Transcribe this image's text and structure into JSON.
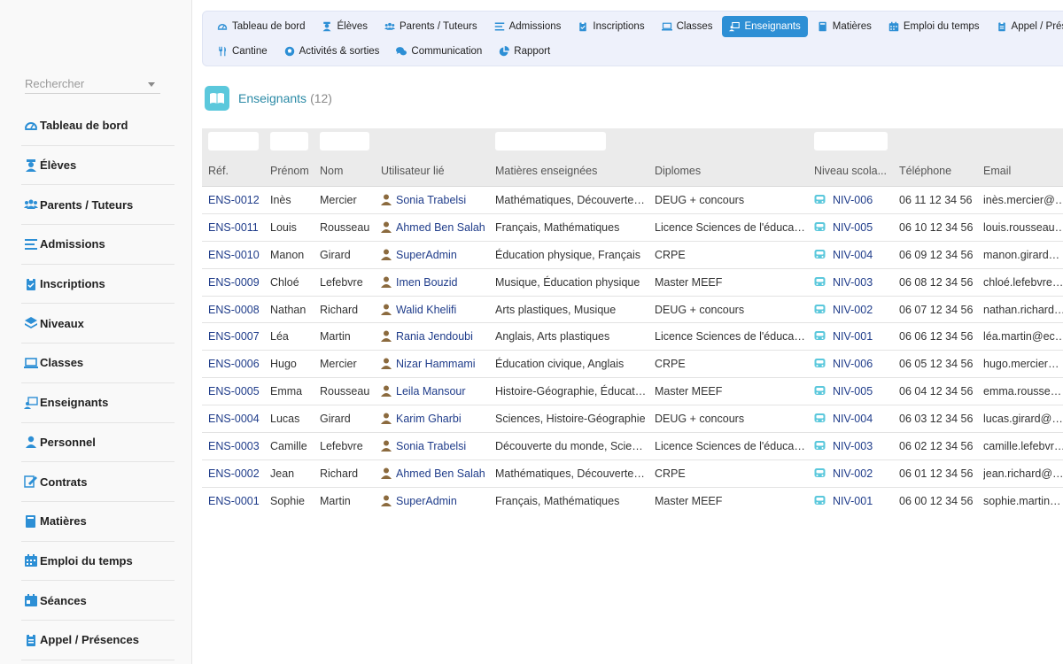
{
  "nav": {
    "row1": [
      {
        "label": "Tableau de bord",
        "icon": "dashboard-icon",
        "active": false
      },
      {
        "label": "Élèves",
        "icon": "student-icon",
        "active": false
      },
      {
        "label": "Parents / Tuteurs",
        "icon": "users-icon",
        "active": false
      },
      {
        "label": "Admissions",
        "icon": "list-icon",
        "active": false
      },
      {
        "label": "Inscriptions",
        "icon": "clipboard-icon",
        "active": false
      },
      {
        "label": "Classes",
        "icon": "laptop-icon",
        "active": false
      },
      {
        "label": "Enseignants",
        "icon": "teacher-icon",
        "active": true
      },
      {
        "label": "Matières",
        "icon": "book-icon",
        "active": false
      },
      {
        "label": "Emploi du temps",
        "icon": "calendar-icon",
        "active": false
      },
      {
        "label": "Appel / Présences",
        "icon": "clipboard-check-icon",
        "active": false
      }
    ],
    "row2": [
      {
        "label": "Cantine",
        "icon": "utensils-icon",
        "active": false
      },
      {
        "label": "Activités & sorties",
        "icon": "ball-icon",
        "active": false
      },
      {
        "label": "Communication",
        "icon": "comments-icon",
        "active": false
      },
      {
        "label": "Rapport",
        "icon": "pie-chart-icon",
        "active": false
      }
    ]
  },
  "sidebar": {
    "search_placeholder": "Rechercher",
    "items": [
      {
        "label": "Tableau de bord",
        "icon": "dashboard-icon"
      },
      {
        "label": "Élèves",
        "icon": "student-icon"
      },
      {
        "label": "Parents / Tuteurs",
        "icon": "users-icon"
      },
      {
        "label": "Admissions",
        "icon": "list-icon"
      },
      {
        "label": "Inscriptions",
        "icon": "clipboard-icon"
      },
      {
        "label": "Niveaux",
        "icon": "layers-icon"
      },
      {
        "label": "Classes",
        "icon": "laptop-icon"
      },
      {
        "label": "Enseignants",
        "icon": "teacher-icon"
      },
      {
        "label": "Personnel",
        "icon": "user-icon"
      },
      {
        "label": "Contrats",
        "icon": "contract-icon"
      },
      {
        "label": "Matières",
        "icon": "book-icon"
      },
      {
        "label": "Emploi du temps",
        "icon": "calendar-icon"
      },
      {
        "label": "Séances",
        "icon": "calendar-day-icon"
      },
      {
        "label": "Appel / Présences",
        "icon": "clipboard-check-icon"
      }
    ]
  },
  "page": {
    "title": "Enseignants",
    "count": "(12)",
    "icon": "open-book-icon"
  },
  "table": {
    "columns": [
      "Réf.",
      "Prénom",
      "Nom",
      "Utilisateur lié",
      "Matières enseignées",
      "Diplomes",
      "Niveau scola...",
      "Téléphone",
      "Email"
    ],
    "rows": [
      [
        "ENS-0012",
        "Inès",
        "Mercier",
        "Sonia Trabelsi",
        "Mathématiques, Découverte du monde",
        "DEUG + concours",
        "NIV-006",
        "06 11 12 34 56",
        "inès.mercier@ecole.fr"
      ],
      [
        "ENS-0011",
        "Louis",
        "Rousseau",
        "Ahmed Ben Salah",
        "Français, Mathématiques",
        "Licence Sciences de l'éducation",
        "NIV-005",
        "06 10 12 34 56",
        "louis.rousseau@ecole.fr"
      ],
      [
        "ENS-0010",
        "Manon",
        "Girard",
        "SuperAdmin",
        "Éducation physique, Français",
        "CRPE",
        "NIV-004",
        "06 09 12 34 56",
        "manon.girard@ecole.fr"
      ],
      [
        "ENS-0009",
        "Chloé",
        "Lefebvre",
        "Imen Bouzid",
        "Musique, Éducation physique",
        "Master MEEF",
        "NIV-003",
        "06 08 12 34 56",
        "chloé.lefebvre@ecole.fr"
      ],
      [
        "ENS-0008",
        "Nathan",
        "Richard",
        "Walid Khelifi",
        "Arts plastiques, Musique",
        "DEUG + concours",
        "NIV-002",
        "06 07 12 34 56",
        "nathan.richard@ecole.fr"
      ],
      [
        "ENS-0007",
        "Léa",
        "Martin",
        "Rania Jendoubi",
        "Anglais, Arts plastiques",
        "Licence Sciences de l'éducation",
        "NIV-001",
        "06 06 12 34 56",
        "léa.martin@ecole.fr"
      ],
      [
        "ENS-0006",
        "Hugo",
        "Mercier",
        "Nizar Hammami",
        "Éducation civique, Anglais",
        "CRPE",
        "NIV-006",
        "06 05 12 34 56",
        "hugo.mercier@ecole.fr"
      ],
      [
        "ENS-0005",
        "Emma",
        "Rousseau",
        "Leila Mansour",
        "Histoire-Géographie, Éducation civique",
        "Master MEEF",
        "NIV-005",
        "06 04 12 34 56",
        "emma.rousseau@ecole.fr"
      ],
      [
        "ENS-0004",
        "Lucas",
        "Girard",
        "Karim Gharbi",
        "Sciences, Histoire-Géographie",
        "DEUG + concours",
        "NIV-004",
        "06 03 12 34 56",
        "lucas.girard@ecole.fr"
      ],
      [
        "ENS-0003",
        "Camille",
        "Lefebvre",
        "Sonia Trabelsi",
        "Découverte du monde, Sciences",
        "Licence Sciences de l'éducation",
        "NIV-003",
        "06 02 12 34 56",
        "camille.lefebvre@ecole.fr"
      ],
      [
        "ENS-0002",
        "Jean",
        "Richard",
        "Ahmed Ben Salah",
        "Mathématiques, Découverte du monde",
        "CRPE",
        "NIV-002",
        "06 01 12 34 56",
        "jean.richard@ecole.fr"
      ],
      [
        "ENS-0001",
        "Sophie",
        "Martin",
        "SuperAdmin",
        "Français, Mathématiques",
        "Master MEEF",
        "NIV-001",
        "06 00 12 34 56",
        "sophie.martin@ecole.fr"
      ]
    ]
  },
  "colors": {
    "accent": "#2d8fd5",
    "link": "#1f3c8a",
    "brand": "#5bc8dc",
    "user_icon": "#8b6a3e"
  }
}
